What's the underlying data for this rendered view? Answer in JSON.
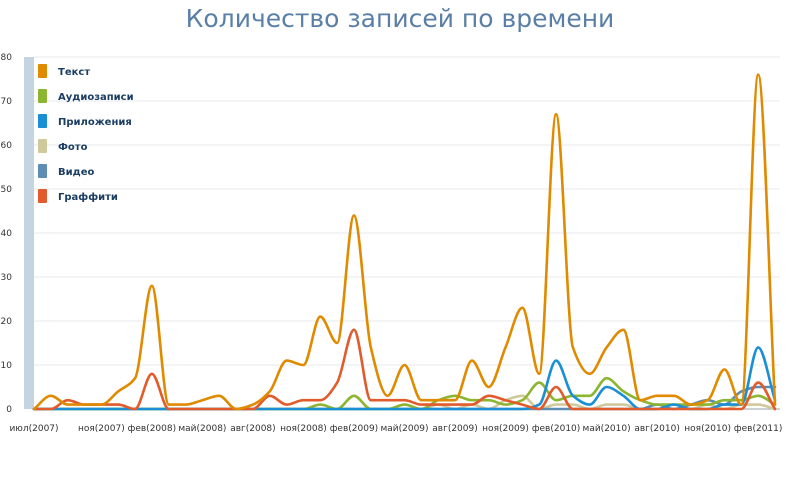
{
  "chart_data": {
    "type": "line",
    "title": "Количество записей по времени",
    "ylim": [
      0,
      80
    ],
    "yticks": [
      0,
      10,
      20,
      30,
      40,
      50,
      60,
      70,
      80
    ],
    "grid": true,
    "legend_position": "top-left",
    "x_labels": [
      "июл(2007)",
      "ноя(2007)",
      "фев(2008)",
      "май(2008)",
      "авг(2008)",
      "ноя(2008)",
      "фев(2009)",
      "май(2009)",
      "авг(2009)",
      "ноя(2009)",
      "фев(2010)",
      "май(2010)",
      "авг(2010)",
      "ноя(2010)",
      "фев(2011)"
    ],
    "x_label_index": [
      0,
      4,
      7,
      10,
      13,
      16,
      19,
      22,
      25,
      28,
      31,
      34,
      37,
      40,
      43
    ],
    "x": [
      "июл(2007)",
      "авг(2007)",
      "сен(2007)",
      "окт(2007)",
      "ноя(2007)",
      "дек(2007)",
      "янв(2008)",
      "фев(2008)",
      "мар(2008)",
      "апр(2008)",
      "май(2008)",
      "июн(2008)",
      "июл(2008)",
      "авг(2008)",
      "сен(2008)",
      "окт(2008)",
      "ноя(2008)",
      "дек(2008)",
      "янв(2009)",
      "фев(2009)",
      "мар(2009)",
      "апр(2009)",
      "май(2009)",
      "июн(2009)",
      "июл(2009)",
      "авг(2009)",
      "сен(2009)",
      "окт(2009)",
      "ноя(2009)",
      "дек(2009)",
      "янв(2010)",
      "фев(2010)",
      "мар(2010)",
      "апр(2010)",
      "май(2010)",
      "июн(2010)",
      "июл(2010)",
      "авг(2010)",
      "сен(2010)",
      "окт(2010)",
      "ноя(2010)",
      "дек(2010)",
      "янв(2011)",
      "фев(2011)",
      "мар(2011)"
    ],
    "series": [
      {
        "name": "Текст",
        "color": "#e08a00",
        "values": [
          0,
          3,
          1,
          1,
          1,
          4,
          7,
          28,
          1,
          1,
          2,
          3,
          0,
          1,
          4,
          11,
          10,
          21,
          15,
          44,
          14,
          3,
          10,
          2,
          2,
          2,
          11,
          5,
          14,
          23,
          8,
          67,
          14,
          8,
          14,
          18,
          2,
          3,
          3,
          1,
          2,
          9,
          1,
          76,
          1
        ]
      },
      {
        "name": "Аудиозаписи",
        "color": "#8cb532",
        "values": [
          0,
          0,
          0,
          0,
          0,
          0,
          0,
          0,
          0,
          0,
          0,
          0,
          0,
          0,
          0,
          0,
          0,
          1,
          0,
          3,
          0,
          0,
          1,
          0,
          2,
          3,
          2,
          2,
          1,
          2,
          6,
          2,
          3,
          3,
          7,
          4,
          2,
          1,
          1,
          1,
          1,
          2,
          2,
          3,
          1
        ]
      },
      {
        "name": "Приложения",
        "color": "#1a8fd4",
        "values": [
          0,
          0,
          0,
          0,
          0,
          0,
          0,
          0,
          0,
          0,
          0,
          0,
          0,
          0,
          0,
          0,
          0,
          0,
          0,
          0,
          0,
          0,
          0,
          0,
          0,
          0,
          0,
          0,
          0,
          0,
          1,
          11,
          3,
          1,
          5,
          3,
          0,
          0,
          1,
          0,
          0,
          1,
          1,
          14,
          2
        ]
      },
      {
        "name": "Фото",
        "color": "#cfc99c",
        "values": [
          0,
          0,
          0,
          0,
          0,
          0,
          0,
          0,
          0,
          0,
          0,
          0,
          0,
          0,
          0,
          0,
          0,
          0,
          0,
          0,
          0,
          0,
          0,
          0,
          1,
          0,
          1,
          0,
          2,
          3,
          0,
          1,
          1,
          0,
          1,
          1,
          0,
          0,
          0,
          0,
          1,
          0,
          1,
          1,
          0
        ]
      },
      {
        "name": "Видео",
        "color": "#5e8db3",
        "values": [
          0,
          0,
          0,
          0,
          0,
          0,
          0,
          0,
          0,
          0,
          0,
          0,
          0,
          0,
          0,
          0,
          0,
          0,
          0,
          0,
          0,
          0,
          0,
          0,
          0,
          0,
          0,
          0,
          0,
          0,
          0,
          0,
          0,
          0,
          0,
          0,
          0,
          1,
          0,
          1,
          2,
          1,
          4,
          5,
          5
        ]
      },
      {
        "name": "Граффити",
        "color": "#e25b2c",
        "values": [
          0,
          0,
          2,
          1,
          1,
          1,
          0,
          8,
          0,
          0,
          0,
          0,
          0,
          0,
          3,
          1,
          2,
          2,
          6,
          18,
          2,
          2,
          2,
          1,
          1,
          1,
          1,
          3,
          2,
          1,
          0,
          5,
          0,
          0,
          0,
          0,
          0,
          0,
          0,
          0,
          0,
          0,
          0,
          6,
          0
        ]
      }
    ]
  }
}
